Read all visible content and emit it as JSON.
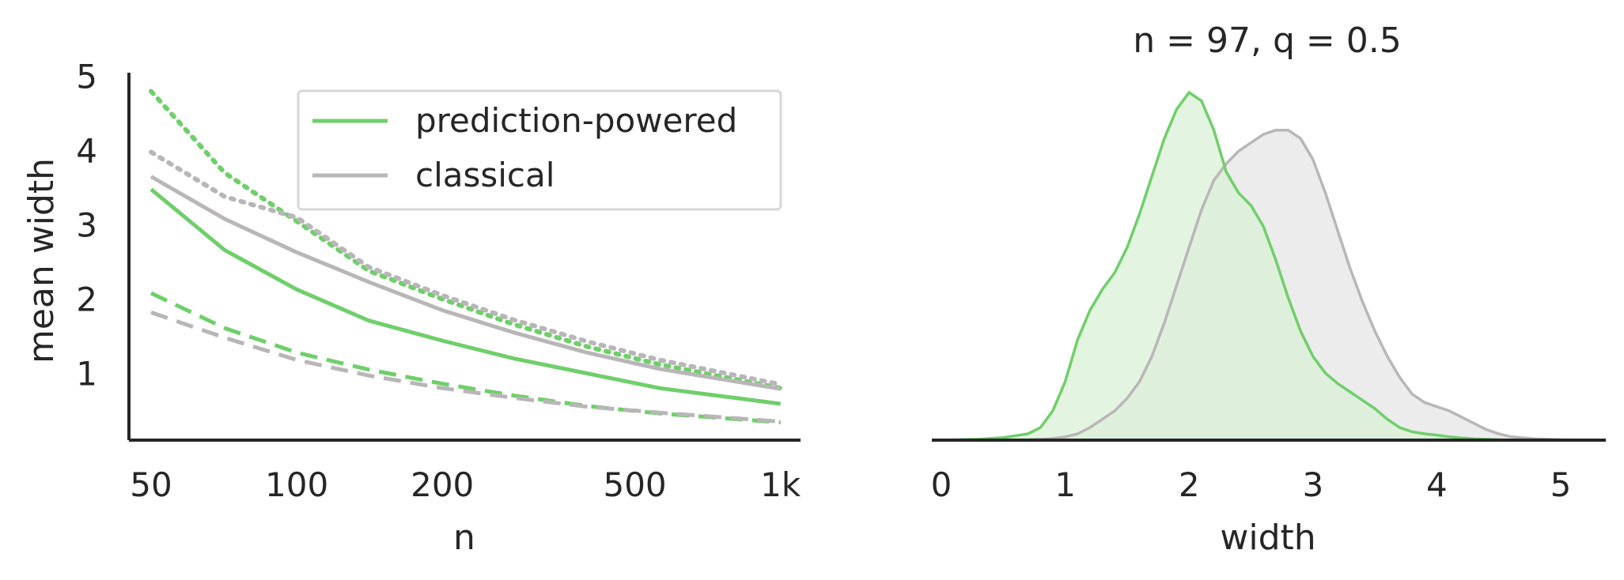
{
  "colors": {
    "ppi": "#6fcf6a",
    "classical": "#b9b6b8",
    "ppi_fill": "#d9f2d6",
    "classical_fill": "#ececec",
    "axis": "#262626"
  },
  "chart_data": [
    {
      "type": "line",
      "xlabel": "n",
      "ylabel": "mean width",
      "xscale": "log",
      "xlim": [
        45,
        1100
      ],
      "ylim": [
        0.1,
        5.05
      ],
      "xticks": [
        50,
        100,
        200,
        500,
        1000
      ],
      "xtick_labels": [
        "50",
        "100",
        "200",
        "500",
        "1k"
      ],
      "yticks": [
        1,
        2,
        3,
        4,
        5
      ],
      "ytick_labels": [
        "1",
        "2",
        "3",
        "4",
        "5"
      ],
      "legend": {
        "placement": "top-right",
        "entries": [
          {
            "label": "prediction-powered",
            "color_key": "ppi"
          },
          {
            "label": "classical",
            "color_key": "classical"
          }
        ]
      },
      "x": [
        50,
        71,
        100,
        141,
        200,
        281,
        398,
        562,
        1000
      ],
      "series": [
        {
          "name": "prediction-powered",
          "style": "solid",
          "color_key": "ppi",
          "values": [
            3.48,
            2.66,
            2.13,
            1.71,
            1.44,
            1.2,
            1.0,
            0.8,
            0.59
          ]
        },
        {
          "name": "classical",
          "style": "solid",
          "color_key": "classical",
          "values": [
            3.65,
            3.08,
            2.63,
            2.23,
            1.85,
            1.55,
            1.28,
            1.06,
            0.79
          ]
        },
        {
          "style": "dotted",
          "color_key": "ppi",
          "values": [
            4.8,
            3.7,
            3.05,
            2.38,
            2.0,
            1.66,
            1.36,
            1.12,
            0.8
          ]
        },
        {
          "style": "dotted",
          "color_key": "classical",
          "values": [
            3.98,
            3.38,
            3.1,
            2.43,
            2.05,
            1.72,
            1.43,
            1.18,
            0.85
          ]
        },
        {
          "style": "dashed",
          "color_key": "ppi",
          "values": [
            2.08,
            1.61,
            1.28,
            1.05,
            0.86,
            0.7,
            0.56,
            0.46,
            0.34
          ]
        },
        {
          "style": "dashed",
          "color_key": "classical",
          "values": [
            1.82,
            1.48,
            1.18,
            0.97,
            0.8,
            0.67,
            0.55,
            0.47,
            0.35
          ]
        }
      ]
    },
    {
      "type": "area",
      "title": "n = 97, q = 0.5",
      "xlabel": "width",
      "xlim": [
        0,
        5.3
      ],
      "xticks": [
        0,
        1,
        2,
        3,
        4,
        5
      ],
      "xtick_labels": [
        "0",
        "1",
        "2",
        "3",
        "4",
        "5"
      ],
      "ymax_density": 0.83,
      "x": [
        0,
        0.3,
        0.5,
        0.7,
        0.8,
        0.9,
        1.0,
        1.1,
        1.2,
        1.3,
        1.4,
        1.5,
        1.6,
        1.7,
        1.8,
        1.9,
        2.0,
        2.1,
        2.2,
        2.3,
        2.4,
        2.5,
        2.6,
        2.7,
        2.8,
        2.9,
        3.0,
        3.1,
        3.2,
        3.3,
        3.4,
        3.5,
        3.6,
        3.7,
        3.8,
        3.9,
        4.0,
        4.1,
        4.2,
        4.3,
        4.4,
        4.5,
        4.6,
        4.8,
        5.0,
        5.3
      ],
      "series": [
        {
          "name": "prediction-powered",
          "color_key": "ppi",
          "fill_key": "ppi_fill",
          "values": [
            0,
            0.002,
            0.006,
            0.015,
            0.03,
            0.07,
            0.14,
            0.24,
            0.31,
            0.36,
            0.4,
            0.46,
            0.54,
            0.63,
            0.72,
            0.79,
            0.83,
            0.81,
            0.74,
            0.64,
            0.59,
            0.56,
            0.51,
            0.43,
            0.34,
            0.26,
            0.2,
            0.16,
            0.135,
            0.115,
            0.095,
            0.075,
            0.05,
            0.03,
            0.02,
            0.015,
            0.012,
            0.008,
            0.005,
            0.003,
            0.002,
            0.001,
            0,
            0,
            0,
            0
          ]
        },
        {
          "name": "classical",
          "color_key": "classical",
          "fill_key": "classical_fill",
          "values": [
            0,
            0,
            0,
            0.001,
            0.002,
            0.004,
            0.008,
            0.015,
            0.03,
            0.05,
            0.07,
            0.1,
            0.14,
            0.2,
            0.28,
            0.37,
            0.46,
            0.55,
            0.62,
            0.66,
            0.69,
            0.71,
            0.73,
            0.74,
            0.74,
            0.72,
            0.67,
            0.59,
            0.5,
            0.41,
            0.33,
            0.26,
            0.2,
            0.15,
            0.11,
            0.09,
            0.08,
            0.07,
            0.055,
            0.04,
            0.025,
            0.015,
            0.008,
            0.003,
            0.001,
            0
          ]
        }
      ]
    }
  ]
}
